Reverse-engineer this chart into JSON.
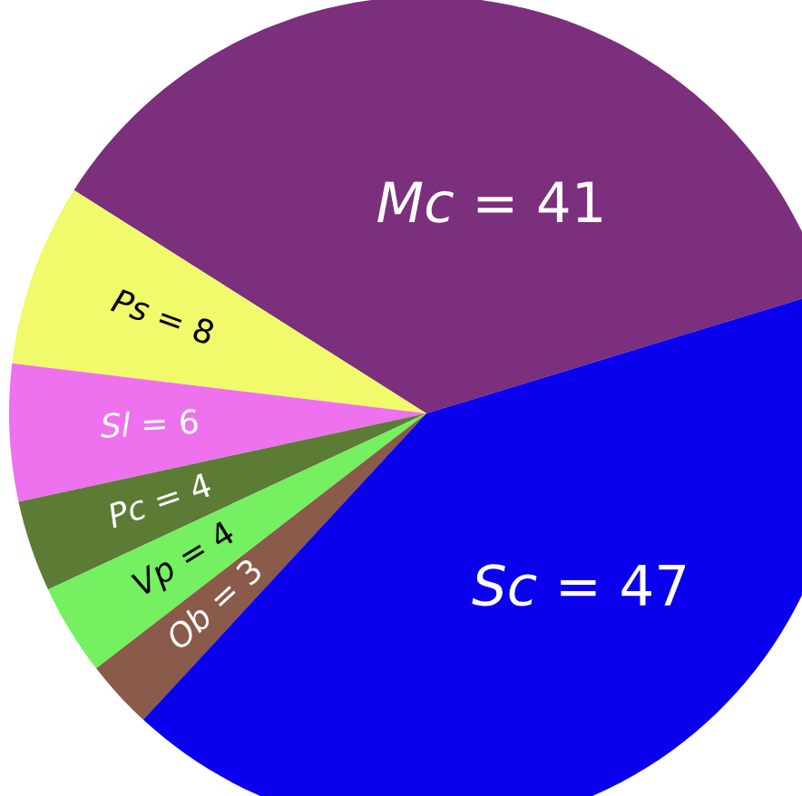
{
  "chart_data": {
    "type": "pie",
    "categories": [
      "Mc",
      "Ps",
      "Sl",
      "Pc",
      "Vp",
      "Ob",
      "Sc"
    ],
    "values": [
      41,
      8,
      6,
      4,
      4,
      3,
      47
    ],
    "colors": [
      "#7b2f7d",
      "#f0fa6a",
      "#ee72ee",
      "#5c7c36",
      "#74f060",
      "#8a5a4a",
      "#0a00ee"
    ],
    "value_labels": [
      "= 41",
      "= 8",
      "= 6",
      "= 4",
      "= 4",
      "= 3",
      "= 47"
    ]
  }
}
